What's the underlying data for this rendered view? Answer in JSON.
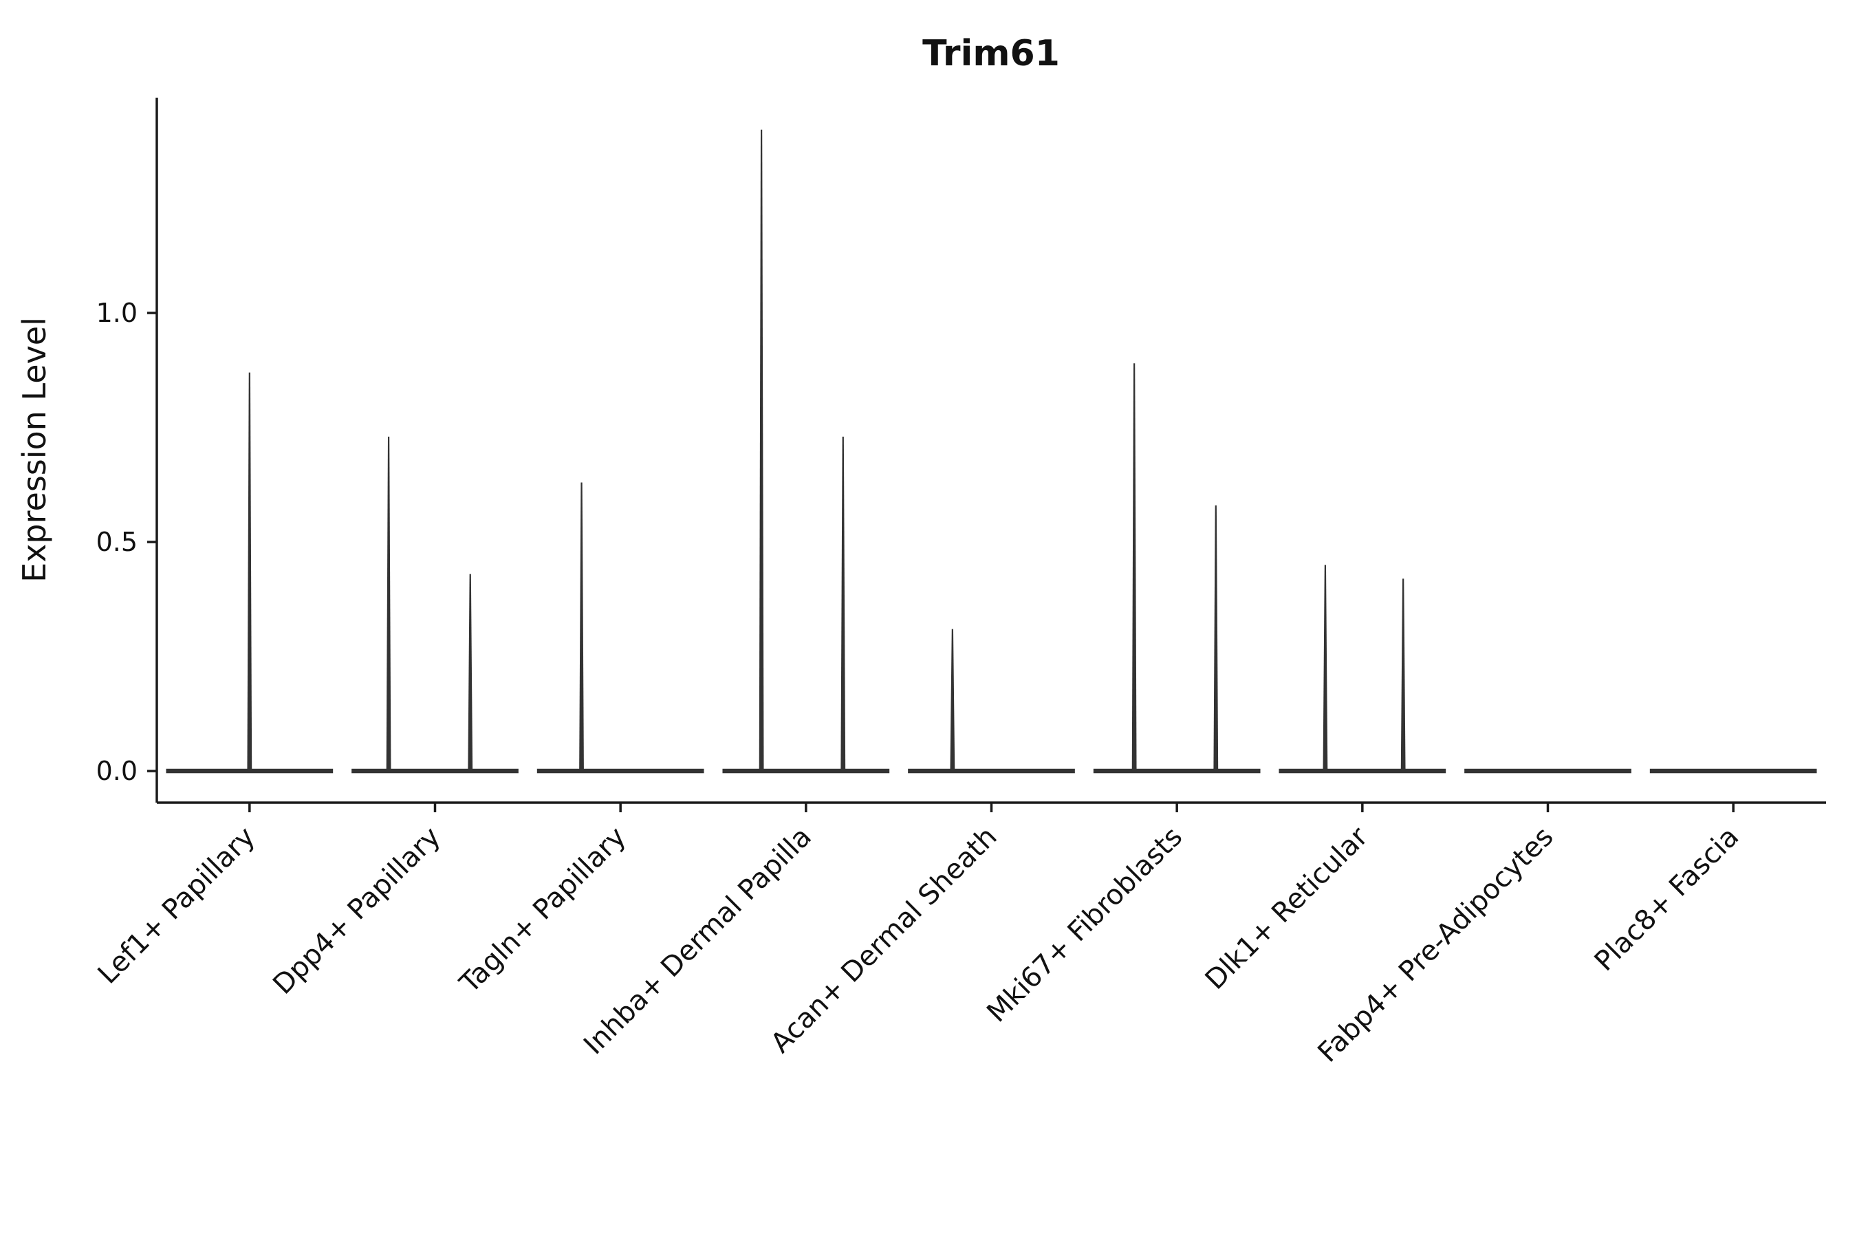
{
  "chart_data": {
    "type": "violin",
    "title": "Trim61",
    "xlabel": "",
    "ylabel": "Expression Level",
    "categories": [
      "Lef1+ Papillary",
      "Dpp4+ Papillary",
      "Tagln+ Papillary",
      "Inhba+ Dermal Papilla",
      "Acan+ Dermal Sheath",
      "Mki67+ Fibroblasts",
      "Dlk1+ Reticular",
      "Fabp4+ Pre-Adipocytes",
      "Plac8+ Fascia"
    ],
    "yticks": [
      0,
      0.5,
      1
    ],
    "ytick_labels": [
      "0.0",
      "0.5",
      "1.0"
    ],
    "ylim": [
      -0.069,
      1.47
    ],
    "grid": false,
    "legend": "none",
    "violin_halfwidth": 0.45,
    "violins": [
      {
        "category": "Lef1+ Papillary",
        "baseline": 0,
        "spikes": [
          {
            "offset": 0.0,
            "max": 0.87
          }
        ]
      },
      {
        "category": "Dpp4+ Papillary",
        "baseline": 0,
        "spikes": [
          {
            "offset": -0.25,
            "max": 0.73
          },
          {
            "offset": 0.19,
            "max": 0.43
          }
        ]
      },
      {
        "category": "Tagln+ Papillary",
        "baseline": 0,
        "spikes": [
          {
            "offset": -0.21,
            "max": 0.63
          }
        ]
      },
      {
        "category": "Inhba+ Dermal Papilla",
        "baseline": 0,
        "spikes": [
          {
            "offset": -0.24,
            "max": 1.4
          },
          {
            "offset": 0.2,
            "max": 0.73
          }
        ]
      },
      {
        "category": "Acan+ Dermal Sheath",
        "baseline": 0,
        "spikes": [
          {
            "offset": -0.21,
            "max": 0.31
          }
        ]
      },
      {
        "category": "Mki67+ Fibroblasts",
        "baseline": 0,
        "spikes": [
          {
            "offset": -0.23,
            "max": 0.89
          },
          {
            "offset": 0.21,
            "max": 0.58
          }
        ]
      },
      {
        "category": "Dlk1+ Reticular",
        "baseline": 0,
        "spikes": [
          {
            "offset": -0.2,
            "max": 0.45
          },
          {
            "offset": 0.22,
            "max": 0.42
          }
        ]
      },
      {
        "category": "Fabp4+ Pre-Adipocytes",
        "baseline": 0,
        "spikes": []
      },
      {
        "category": "Plac8+ Fascia",
        "baseline": 0,
        "spikes": []
      }
    ],
    "colors": {
      "violin": "#333333",
      "axis": "#1a1a1a",
      "text": "#111111",
      "background": "#ffffff"
    }
  }
}
